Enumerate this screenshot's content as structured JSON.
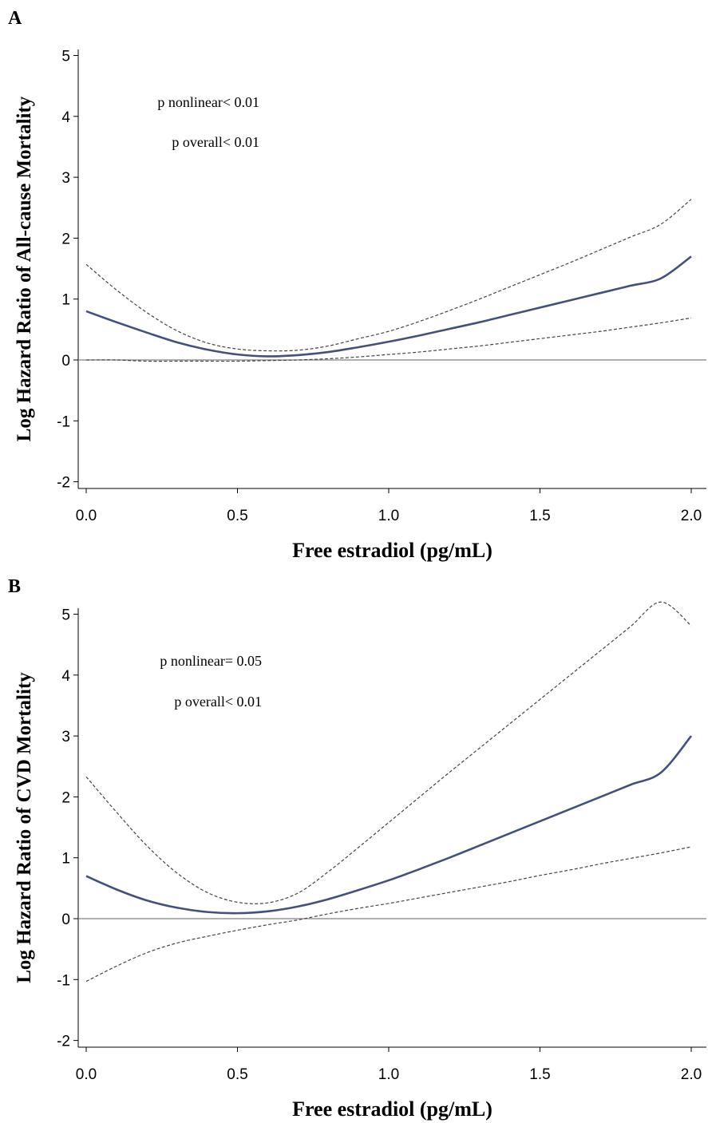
{
  "chart_data": [
    {
      "panel": "A",
      "type": "line",
      "xlabel": "Free estradiol (pg/mL)",
      "ylabel": "Log Hazard Ratio of All-cause Mortality",
      "xlim": [
        0,
        2
      ],
      "ylim": [
        -2,
        5
      ],
      "x_ticks": [
        "0.0",
        "0.5",
        "1.0",
        "1.5",
        "2.0"
      ],
      "y_ticks": [
        "-2",
        "-1",
        "0",
        "1",
        "2",
        "3",
        "4",
        "5"
      ],
      "annotations": [
        "p nonlinear< 0.01",
        "p overall< 0.01"
      ],
      "reference_line_y": 0,
      "x": [
        0,
        0.1,
        0.2,
        0.3,
        0.4,
        0.5,
        0.6,
        0.7,
        0.8,
        0.9,
        1.0,
        1.1,
        1.2,
        1.3,
        1.4,
        1.5,
        1.6,
        1.7,
        1.8,
        1.9,
        2.0
      ],
      "series": [
        {
          "role": "estimate",
          "values": [
            0.8,
            0.62,
            0.45,
            0.29,
            0.17,
            0.09,
            0.06,
            0.08,
            0.13,
            0.21,
            0.3,
            0.4,
            0.51,
            0.62,
            0.74,
            0.86,
            0.98,
            1.1,
            1.22,
            1.34,
            1.7
          ]
        },
        {
          "role": "upper_ci",
          "values": [
            1.57,
            1.15,
            0.78,
            0.48,
            0.28,
            0.18,
            0.15,
            0.16,
            0.23,
            0.35,
            0.47,
            0.63,
            0.81,
            1.0,
            1.2,
            1.4,
            1.6,
            1.81,
            2.02,
            2.23,
            2.64
          ]
        },
        {
          "role": "lower_ci",
          "values": [
            0.0,
            0.0,
            -0.02,
            -0.02,
            -0.02,
            -0.02,
            -0.01,
            0.0,
            0.02,
            0.05,
            0.09,
            0.13,
            0.18,
            0.23,
            0.29,
            0.35,
            0.41,
            0.47,
            0.54,
            0.61,
            0.69
          ]
        }
      ]
    },
    {
      "panel": "B",
      "type": "line",
      "xlabel": "Free estradiol (pg/mL)",
      "ylabel": "Log Hazard Ratio of CVD Mortality",
      "xlim": [
        0,
        2
      ],
      "ylim": [
        -2,
        5
      ],
      "x_ticks": [
        "0.0",
        "0.5",
        "1.0",
        "1.5",
        "2.0"
      ],
      "y_ticks": [
        "-2",
        "-1",
        "0",
        "1",
        "2",
        "3",
        "4",
        "5"
      ],
      "annotations": [
        "p nonlinear= 0.05",
        "p overall< 0.01"
      ],
      "reference_line_y": 0,
      "x": [
        0,
        0.1,
        0.2,
        0.3,
        0.4,
        0.5,
        0.6,
        0.7,
        0.8,
        0.9,
        1.0,
        1.1,
        1.2,
        1.3,
        1.4,
        1.5,
        1.6,
        1.7,
        1.8,
        1.9,
        2.0
      ],
      "series": [
        {
          "role": "estimate",
          "values": [
            0.7,
            0.48,
            0.3,
            0.18,
            0.11,
            0.09,
            0.12,
            0.2,
            0.32,
            0.47,
            0.63,
            0.81,
            1.0,
            1.2,
            1.4,
            1.6,
            1.8,
            2.0,
            2.2,
            2.4,
            3.0
          ]
        },
        {
          "role": "upper_ci",
          "values": [
            2.33,
            1.75,
            1.2,
            0.75,
            0.43,
            0.27,
            0.26,
            0.42,
            0.77,
            1.17,
            1.58,
            1.99,
            2.4,
            2.8,
            3.2,
            3.6,
            4.0,
            4.4,
            4.8,
            5.2,
            4.81
          ]
        },
        {
          "role": "lower_ci",
          "values": [
            -1.03,
            -0.78,
            -0.56,
            -0.4,
            -0.29,
            -0.19,
            -0.1,
            -0.02,
            0.08,
            0.17,
            0.25,
            0.34,
            0.43,
            0.52,
            0.61,
            0.71,
            0.8,
            0.9,
            0.99,
            1.08,
            1.18
          ]
        }
      ]
    }
  ]
}
